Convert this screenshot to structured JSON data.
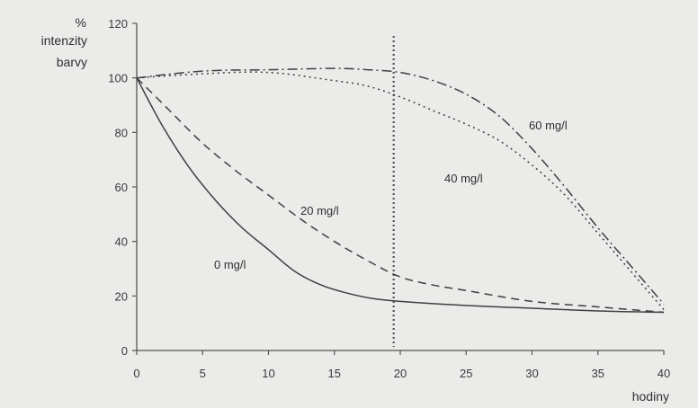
{
  "chart_data": {
    "type": "line",
    "ylabel_lines": [
      "%",
      "intenzity",
      "barvy"
    ],
    "xlabel": "hodiny",
    "xlim": [
      0,
      40
    ],
    "ylim": [
      0,
      120
    ],
    "x_ticks": [
      0,
      5,
      10,
      15,
      20,
      25,
      30,
      35,
      40
    ],
    "y_ticks": [
      0,
      20,
      40,
      60,
      80,
      100,
      120
    ],
    "grid": false,
    "reference_line": {
      "x": 19.5,
      "style": "dotted"
    },
    "series": [
      {
        "name": "0 mg/l",
        "style": "solid",
        "x": [
          0,
          2,
          4,
          6,
          8,
          10,
          12,
          14,
          16,
          18,
          20,
          25,
          30,
          35,
          40
        ],
        "y": [
          100,
          82,
          67,
          55,
          45,
          37,
          29,
          24,
          21,
          19,
          18,
          16.5,
          15.5,
          14.5,
          14
        ]
      },
      {
        "name": "20 mg/l",
        "style": "dashed",
        "x": [
          0,
          2.5,
          5,
          7.5,
          10,
          12.5,
          15,
          17.5,
          20,
          22.5,
          25,
          30,
          35,
          40
        ],
        "y": [
          100,
          88,
          76,
          66,
          57,
          48,
          40,
          33,
          27,
          24,
          22,
          18,
          16,
          14
        ]
      },
      {
        "name": "40 mg/l",
        "style": "dotted",
        "x": [
          0,
          5,
          10,
          15,
          17.5,
          20,
          22.5,
          25,
          27.5,
          30,
          32.5,
          35,
          37.5,
          40
        ],
        "y": [
          100,
          101.5,
          102,
          99,
          97,
          93,
          88,
          83,
          77,
          68,
          57,
          43,
          29,
          15
        ]
      },
      {
        "name": "60 mg/l",
        "style": "dashdot",
        "x": [
          0,
          5,
          10,
          15,
          17.5,
          20,
          22.5,
          25,
          27.5,
          30,
          32.5,
          35,
          37.5,
          40
        ],
        "y": [
          100,
          102.5,
          103,
          103.5,
          103,
          102,
          99,
          94,
          86,
          74,
          60,
          45,
          31,
          17
        ]
      }
    ]
  }
}
